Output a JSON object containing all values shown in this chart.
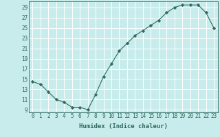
{
  "x": [
    0,
    1,
    2,
    3,
    4,
    5,
    6,
    7,
    8,
    9,
    10,
    11,
    12,
    13,
    14,
    15,
    16,
    17,
    18,
    19,
    20,
    21,
    22,
    23
  ],
  "y": [
    14.5,
    14.0,
    12.5,
    11.0,
    10.5,
    9.5,
    9.5,
    9.0,
    12.0,
    15.5,
    18.0,
    20.5,
    22.0,
    23.5,
    24.5,
    25.5,
    26.5,
    28.0,
    29.0,
    29.5,
    29.5,
    29.5,
    28.0,
    25.0
  ],
  "title": "",
  "xlabel": "Humidex (Indice chaleur)",
  "ylabel": "",
  "xlim": [
    -0.5,
    23.5
  ],
  "ylim": [
    8.5,
    30.2
  ],
  "yticks": [
    9,
    11,
    13,
    15,
    17,
    19,
    21,
    23,
    25,
    27,
    29
  ],
  "xticks": [
    0,
    1,
    2,
    3,
    4,
    5,
    6,
    7,
    8,
    9,
    10,
    11,
    12,
    13,
    14,
    15,
    16,
    17,
    18,
    19,
    20,
    21,
    22,
    23
  ],
  "line_color": "#2d6b5e",
  "marker": "D",
  "marker_size": 2.2,
  "bg_color": "#c8ebeb",
  "grid_color": "#ffffff",
  "font_color": "#2d6b5e",
  "tick_fontsize": 5.5,
  "xlabel_fontsize": 6.5
}
